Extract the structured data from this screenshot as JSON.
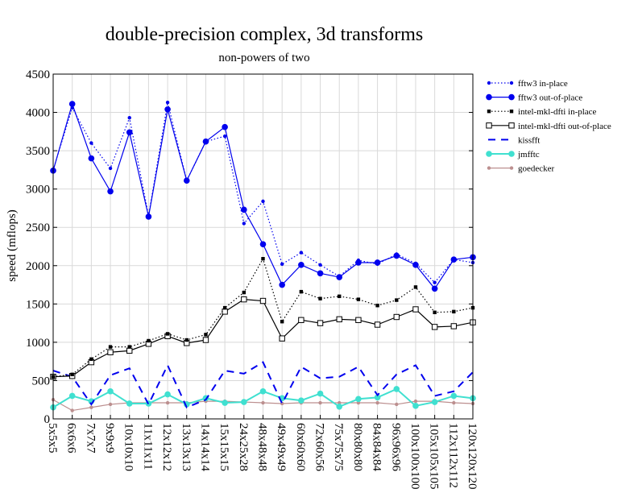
{
  "chart_data": {
    "type": "line",
    "title": "double-precision complex, 3d transforms",
    "subtitle": "non-powers of two",
    "ylabel": "speed (mflops)",
    "xlabel": "",
    "ylim": [
      0,
      4500
    ],
    "yticks": [
      0,
      500,
      1000,
      1500,
      2000,
      2500,
      3000,
      3500,
      4000,
      4500
    ],
    "grid": true,
    "legend_position": "right",
    "categories": [
      "5x5x5",
      "6x6x6",
      "7x7x7",
      "9x9x9",
      "10x10x10",
      "11x11x11",
      "12x12x12",
      "13x13x13",
      "14x14x14",
      "15x15x15",
      "24x25x28",
      "48x48x48",
      "49x49x49",
      "60x60x60",
      "72x60x56",
      "75x75x75",
      "80x80x80",
      "84x84x84",
      "96x96x96",
      "100x100x100",
      "105x105x105",
      "112x112x112",
      "120x120x120"
    ],
    "series": [
      {
        "name": "fftw3 in-place",
        "color": "#0000ee",
        "dash": "dotted",
        "marker": "small-dot",
        "values": [
          3250,
          4060,
          3600,
          3270,
          3930,
          2650,
          4130,
          3110,
          3620,
          3690,
          2550,
          2840,
          2020,
          2170,
          2010,
          1860,
          2070,
          2020,
          2150,
          2030,
          1780,
          2080,
          2040
        ]
      },
      {
        "name": "fftw3 out-of-place",
        "color": "#0000ee",
        "dash": "solid",
        "marker": "large-dot",
        "values": [
          3240,
          4110,
          3400,
          2970,
          3740,
          2640,
          4040,
          3110,
          3620,
          3810,
          2730,
          2280,
          1750,
          2010,
          1900,
          1850,
          2040,
          2040,
          2130,
          2010,
          1700,
          2080,
          2110
        ]
      },
      {
        "name": "intel-mkl-dfti in-place",
        "color": "#000000",
        "dash": "dotted",
        "marker": "filled-square",
        "values": [
          550,
          580,
          780,
          940,
          940,
          1020,
          1110,
          1030,
          1100,
          1450,
          1650,
          2090,
          1270,
          1660,
          1570,
          1600,
          1560,
          1480,
          1550,
          1720,
          1390,
          1400,
          1450
        ]
      },
      {
        "name": "intel-mkl-dfti out-of-place",
        "color": "#000000",
        "dash": "solid",
        "marker": "open-square",
        "values": [
          550,
          560,
          740,
          870,
          890,
          980,
          1080,
          990,
          1030,
          1400,
          1560,
          1540,
          1050,
          1290,
          1250,
          1300,
          1290,
          1230,
          1330,
          1430,
          1200,
          1210,
          1260
        ]
      },
      {
        "name": "kissfft",
        "color": "#0000ee",
        "dash": "dashed",
        "marker": "none",
        "values": [
          630,
          550,
          190,
          570,
          660,
          190,
          700,
          150,
          250,
          630,
          590,
          740,
          200,
          680,
          530,
          550,
          680,
          310,
          580,
          700,
          300,
          360,
          610
        ]
      },
      {
        "name": "jmfftc",
        "color": "#40e0d0",
        "dash": "solid",
        "marker": "large-dot",
        "values": [
          150,
          300,
          230,
          360,
          200,
          200,
          320,
          190,
          270,
          210,
          220,
          360,
          270,
          240,
          330,
          160,
          260,
          280,
          390,
          170,
          220,
          300,
          270
        ]
      },
      {
        "name": "goedecker",
        "color": "#bc8f8f",
        "dash": "solid",
        "marker": "small-dot",
        "values": [
          250,
          110,
          150,
          190,
          210,
          210,
          210,
          210,
          230,
          230,
          220,
          210,
          200,
          210,
          210,
          210,
          210,
          210,
          190,
          230,
          230,
          210,
          200
        ]
      }
    ]
  }
}
